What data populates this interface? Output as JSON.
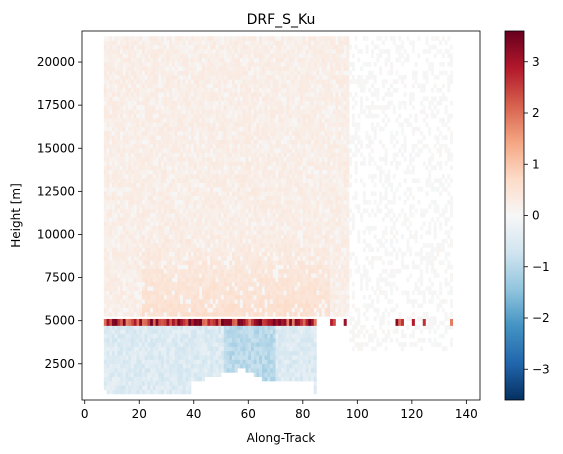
{
  "chart_data": {
    "type": "heatmap",
    "title": "DRF_S_Ku",
    "xlabel": "Along-Track",
    "ylabel": "Height [m]",
    "xlim": [
      -1,
      145
    ],
    "ylim": [
      400,
      21800
    ],
    "xticks": [
      0,
      20,
      40,
      60,
      80,
      100,
      120,
      140
    ],
    "yticks": [
      2500,
      5000,
      7500,
      10000,
      12500,
      15000,
      17500,
      20000
    ],
    "colormap": "RdBu_r",
    "colorbar": {
      "vmin": -3.6,
      "vmax": 3.6,
      "ticks": [
        -3,
        -2,
        -1,
        0,
        1,
        2,
        3
      ]
    },
    "colors": {
      "negative_extreme": "#053061",
      "neutral": "#f7f7f7",
      "positive_extreme": "#67001f"
    },
    "grid": false,
    "data_extent": {
      "x": [
        7,
        135
      ],
      "y": [
        500,
        21500
      ]
    },
    "bright_band_height": 4900,
    "bright_band_segments": [
      [
        7,
        85
      ],
      [
        90,
        92
      ],
      [
        95,
        96
      ],
      [
        114,
        117
      ],
      [
        120,
        121
      ],
      [
        124,
        125
      ],
      [
        134,
        135
      ]
    ],
    "regions": [
      {
        "name": "upper atmosphere noise",
        "x": [
          7,
          97
        ],
        "y": [
          5200,
          21500
        ],
        "value": 0.3
      },
      {
        "name": "enhanced layer above bright band",
        "x": [
          20,
          90
        ],
        "y": [
          5200,
          10000
        ],
        "value": 0.6
      },
      {
        "name": "bright band",
        "x": [
          7,
          97
        ],
        "y": [
          4700,
          5100
        ],
        "value": 2.8
      },
      {
        "name": "rain below bright band",
        "x": [
          7,
          84
        ],
        "y": [
          500,
          4600
        ],
        "value": -0.7
      },
      {
        "name": "sparse noise right region",
        "x": [
          97,
          135
        ],
        "y": [
          3000,
          21500
        ],
        "value": 0.05
      }
    ]
  }
}
